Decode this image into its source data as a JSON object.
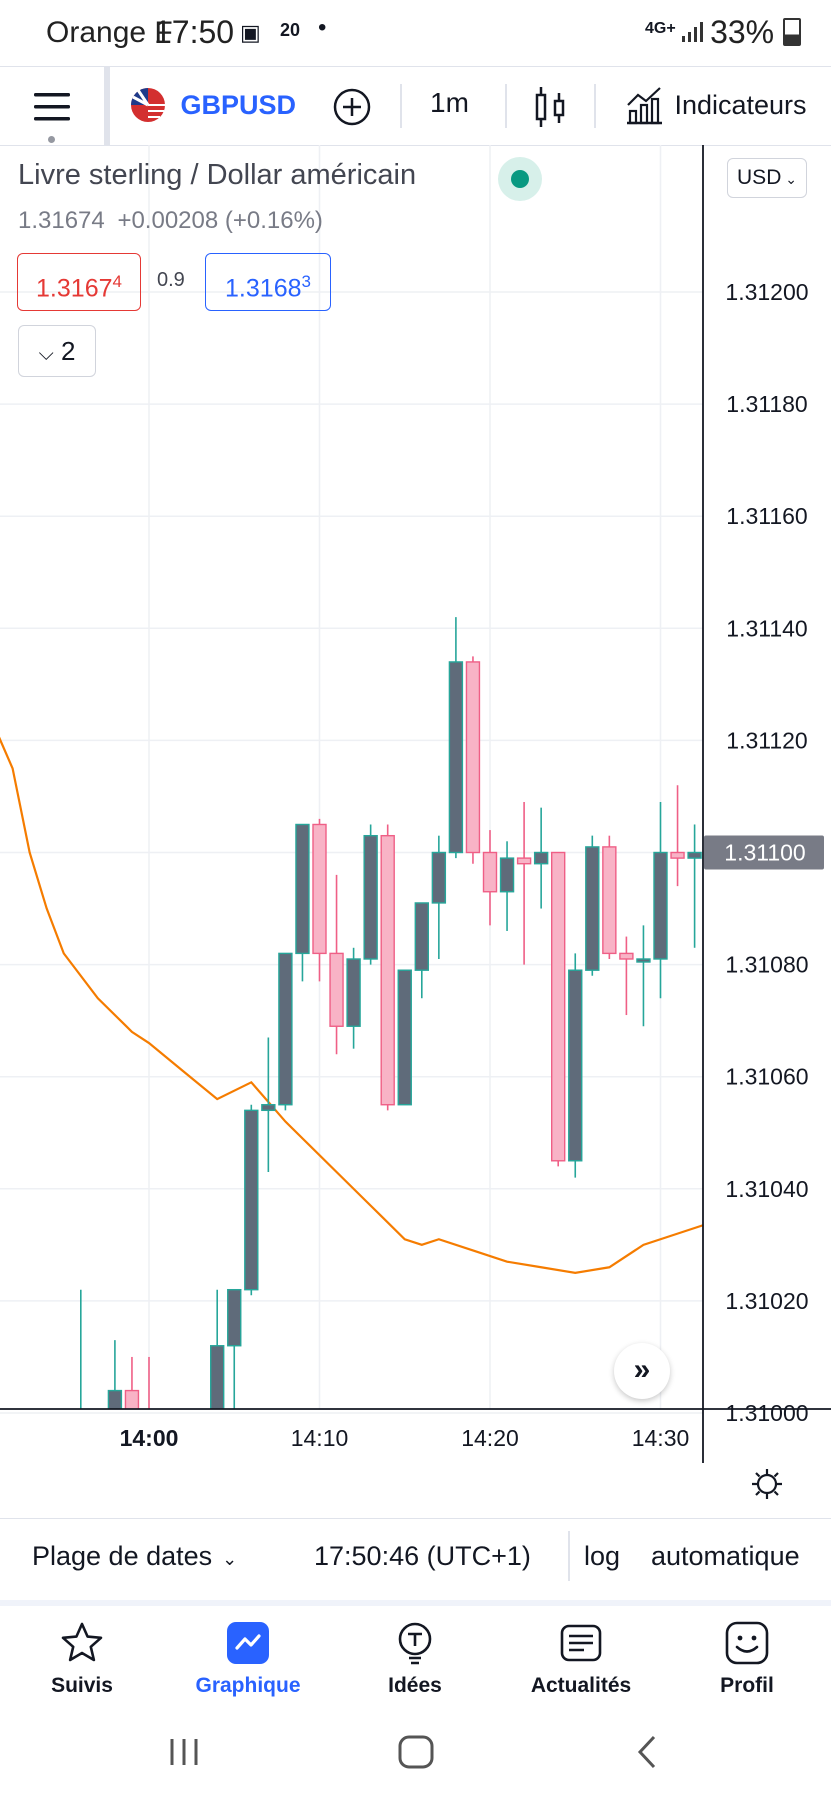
{
  "status": {
    "carrier": "Orange F",
    "time": "17:50",
    "network": "4G+",
    "battery": "33%"
  },
  "toolbar": {
    "symbol": "GBPUSD",
    "interval": "1m",
    "indicators_label": "Indicateurs",
    "icons": [
      "menu-icon",
      "flag-icon",
      "add-symbol-icon",
      "candles-icon",
      "indicators-icon"
    ]
  },
  "legend": {
    "title": "Livre sterling / Dollar américain",
    "price": "1.31674",
    "change": "+0.00208 (+0.16%)",
    "bid": "1.3167",
    "bid_sup": "4",
    "spread": "0.9",
    "ask": "1.3168",
    "ask_sup": "3",
    "collapse_count": "2",
    "currency": "USD"
  },
  "chart_data": {
    "type": "candlestick",
    "y_ticks": [
      "1.31200",
      "1.31180",
      "1.31160",
      "1.31140",
      "1.31120",
      "1.31100",
      "1.31080",
      "1.31060",
      "1.31040",
      "1.31020",
      "1.31000"
    ],
    "current_price_label": "1.31100",
    "x_ticks": [
      "14:00",
      "14:10",
      "14:20",
      "14:30"
    ],
    "ylim": [
      1.30992,
      1.31226
    ],
    "colors": {
      "up": "#26a69a",
      "down": "#f8b3c6",
      "ma": "#f57c00"
    },
    "candles": [
      {
        "t": -4,
        "o": 1.31,
        "h": 1.31022,
        "l": 1.30992,
        "c": 1.31
      },
      {
        "t": -2,
        "o": 1.30995,
        "h": 1.31013,
        "l": 1.30992,
        "c": 1.31004
      },
      {
        "t": -1,
        "o": 1.31004,
        "h": 1.3101,
        "l": 1.30993,
        "c": 1.30995
      },
      {
        "t": 0,
        "o": 1.30995,
        "h": 1.3101,
        "l": 1.30992,
        "c": 1.30992
      },
      {
        "t": 4,
        "o": 1.30992,
        "h": 1.31022,
        "l": 1.30992,
        "c": 1.31012
      },
      {
        "t": 5,
        "o": 1.31012,
        "h": 1.3102,
        "l": 1.30998,
        "c": 1.31022
      },
      {
        "t": 6,
        "o": 1.31022,
        "h": 1.31055,
        "l": 1.31021,
        "c": 1.31054
      },
      {
        "t": 7,
        "o": 1.31054,
        "h": 1.31067,
        "l": 1.31043,
        "c": 1.31055
      },
      {
        "t": 8,
        "o": 1.31055,
        "h": 1.31082,
        "l": 1.31054,
        "c": 1.31082
      },
      {
        "t": 9,
        "o": 1.31082,
        "h": 1.31105,
        "l": 1.31077,
        "c": 1.31105
      },
      {
        "t": 10,
        "o": 1.31105,
        "h": 1.31106,
        "l": 1.31077,
        "c": 1.31082
      },
      {
        "t": 11,
        "o": 1.31082,
        "h": 1.31096,
        "l": 1.31064,
        "c": 1.31069
      },
      {
        "t": 12,
        "o": 1.31069,
        "h": 1.31083,
        "l": 1.31065,
        "c": 1.31081
      },
      {
        "t": 13,
        "o": 1.31081,
        "h": 1.31105,
        "l": 1.3108,
        "c": 1.31103
      },
      {
        "t": 14,
        "o": 1.31103,
        "h": 1.31105,
        "l": 1.31054,
        "c": 1.31055
      },
      {
        "t": 15,
        "o": 1.31055,
        "h": 1.31079,
        "l": 1.31055,
        "c": 1.31079
      },
      {
        "t": 16,
        "o": 1.31079,
        "h": 1.31091,
        "l": 1.31074,
        "c": 1.31091
      },
      {
        "t": 17,
        "o": 1.31091,
        "h": 1.31103,
        "l": 1.31081,
        "c": 1.311
      },
      {
        "t": 18,
        "o": 1.311,
        "h": 1.31142,
        "l": 1.31099,
        "c": 1.31134
      },
      {
        "t": 19,
        "o": 1.31134,
        "h": 1.31135,
        "l": 1.31098,
        "c": 1.311
      },
      {
        "t": 20,
        "o": 1.311,
        "h": 1.31104,
        "l": 1.31087,
        "c": 1.31093
      },
      {
        "t": 21,
        "o": 1.31093,
        "h": 1.31102,
        "l": 1.31086,
        "c": 1.31099
      },
      {
        "t": 22,
        "o": 1.31099,
        "h": 1.31109,
        "l": 1.3108,
        "c": 1.31098
      },
      {
        "t": 23,
        "o": 1.31098,
        "h": 1.31108,
        "l": 1.3109,
        "c": 1.311
      },
      {
        "t": 24,
        "o": 1.311,
        "h": 1.311,
        "l": 1.31044,
        "c": 1.31045
      },
      {
        "t": 25,
        "o": 1.31045,
        "h": 1.31082,
        "l": 1.31042,
        "c": 1.31079
      },
      {
        "t": 26,
        "o": 1.31079,
        "h": 1.31103,
        "l": 1.31078,
        "c": 1.31101
      },
      {
        "t": 27,
        "o": 1.31101,
        "h": 1.31103,
        "l": 1.31081,
        "c": 1.31082
      },
      {
        "t": 28,
        "o": 1.31082,
        "h": 1.31085,
        "l": 1.31071,
        "c": 1.31081
      },
      {
        "t": 29,
        "o": 1.31081,
        "h": 1.31087,
        "l": 1.31069,
        "c": 1.31081
      },
      {
        "t": 30,
        "o": 1.31081,
        "h": 1.31109,
        "l": 1.31074,
        "c": 1.311
      },
      {
        "t": 31,
        "o": 1.311,
        "h": 1.31112,
        "l": 1.31094,
        "c": 1.31099
      },
      {
        "t": 32,
        "o": 1.31099,
        "h": 1.31105,
        "l": 1.31083,
        "c": 1.311
      }
    ],
    "moving_average": [
      {
        "t": -9,
        "v": 1.31122
      },
      {
        "t": -8,
        "v": 1.31115
      },
      {
        "t": -7,
        "v": 1.311
      },
      {
        "t": -6,
        "v": 1.3109
      },
      {
        "t": -5,
        "v": 1.31082
      },
      {
        "t": -3,
        "v": 1.31074
      },
      {
        "t": -1,
        "v": 1.31068
      },
      {
        "t": 0,
        "v": 1.31066
      },
      {
        "t": 2,
        "v": 1.31061
      },
      {
        "t": 4,
        "v": 1.31056
      },
      {
        "t": 6,
        "v": 1.31059
      },
      {
        "t": 8,
        "v": 1.31052
      },
      {
        "t": 9,
        "v": 1.31049
      },
      {
        "t": 11,
        "v": 1.31043
      },
      {
        "t": 13,
        "v": 1.31037
      },
      {
        "t": 15,
        "v": 1.31031
      },
      {
        "t": 16,
        "v": 1.3103
      },
      {
        "t": 17,
        "v": 1.31031
      },
      {
        "t": 19,
        "v": 1.31029
      },
      {
        "t": 21,
        "v": 1.31027
      },
      {
        "t": 23,
        "v": 1.31026
      },
      {
        "t": 25,
        "v": 1.31025
      },
      {
        "t": 27,
        "v": 1.31026
      },
      {
        "t": 29,
        "v": 1.3103
      },
      {
        "t": 31,
        "v": 1.31032
      },
      {
        "t": 33,
        "v": 1.31034
      }
    ]
  },
  "datebar": {
    "range_label": "Plage de dates",
    "clock": "17:50:46 (UTC+1)",
    "log": "log",
    "auto": "automatique"
  },
  "nav": [
    {
      "label": "Suivis",
      "icon": "star-icon"
    },
    {
      "label": "Graphique",
      "icon": "chart-icon"
    },
    {
      "label": "Idées",
      "icon": "idea-icon"
    },
    {
      "label": "Actualités",
      "icon": "news-icon"
    },
    {
      "label": "Profil",
      "icon": "profile-icon"
    }
  ]
}
